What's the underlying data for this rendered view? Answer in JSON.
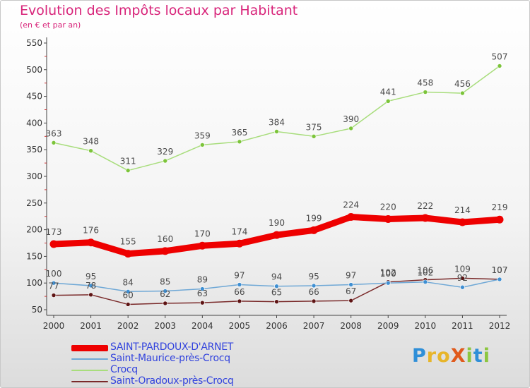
{
  "title": "Evolution des Impôts locaux par Habitant",
  "subtitle": "(en € et par an)",
  "logo": {
    "text": "ProXiti",
    "letters": [
      {
        "ch": "P",
        "color": "#2f8fd8"
      },
      {
        "ch": "r",
        "color": "#e7b52a"
      },
      {
        "ch": "o",
        "color": "#e7b52a"
      },
      {
        "ch": "X",
        "color": "#e05a1c"
      },
      {
        "ch": "i",
        "color": "#8cc63f"
      },
      {
        "ch": "t",
        "color": "#2f8fd8"
      },
      {
        "ch": "i",
        "color": "#8cc63f"
      }
    ]
  },
  "chart_data": {
    "type": "line",
    "title": "Evolution des Impôts locaux par Habitant",
    "ylabel": "(en € et par an)",
    "xlabel": "",
    "x": [
      2000,
      2001,
      2002,
      2003,
      2004,
      2005,
      2006,
      2007,
      2008,
      2009,
      2010,
      2011,
      2012
    ],
    "ylim": [
      50,
      550
    ],
    "yticks": [
      50,
      100,
      150,
      200,
      250,
      300,
      350,
      400,
      450,
      500,
      550
    ],
    "grid": false,
    "legend_position": "bottom-left",
    "series": [
      {
        "name": "SAINT-PARDOUX-D'ARNET",
        "color": "#ee0000",
        "marker_color": "#ee0000",
        "values": [
          173,
          176,
          155,
          160,
          170,
          174,
          190,
          199,
          224,
          220,
          222,
          214,
          219
        ],
        "labels": [
          "173",
          "176",
          "155",
          "160",
          "170",
          "174",
          "190",
          "199",
          "224",
          "220",
          "222",
          "214",
          "219"
        ],
        "label_pos": "above"
      },
      {
        "name": "Saint-Maurice-près-Crocq",
        "color": "#6fa8d6",
        "marker_color": "#3f8fd2",
        "values": [
          100,
          95,
          84,
          85,
          89,
          97,
          94,
          95,
          97,
          100,
          102,
          92,
          107
        ],
        "labels": [
          "100",
          "95",
          "84",
          "85",
          "89",
          "97",
          "94",
          "95",
          "97",
          "100",
          "102",
          "92",
          "107"
        ],
        "label_pos": "above"
      },
      {
        "name": "Crocq",
        "color": "#a8dd7c",
        "marker_color": "#7cc43a",
        "values": [
          363,
          348,
          311,
          329,
          359,
          365,
          384,
          375,
          390,
          441,
          458,
          456,
          507
        ],
        "labels": [
          "363",
          "348",
          "311",
          "329",
          "359",
          "365",
          "384",
          "375",
          "390",
          "441",
          "458",
          "456",
          "507"
        ],
        "label_pos": "above"
      },
      {
        "name": "Saint-Oradoux-près-Crocq",
        "color": "#7a2a2a",
        "marker_color": "#5e1414",
        "values": [
          77,
          78,
          60,
          62,
          63,
          66,
          65,
          66,
          67,
          102,
          106,
          109,
          107
        ],
        "labels": [
          "77",
          "78",
          "60",
          "62",
          "63",
          "66",
          "65",
          "66",
          "67",
          "102",
          "106",
          "109",
          "107"
        ],
        "label_pos": "above"
      }
    ]
  }
}
